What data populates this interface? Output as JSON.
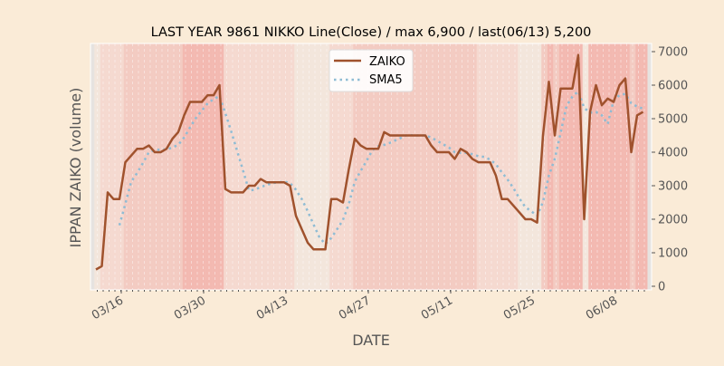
{
  "chart_data": {
    "type": "line",
    "title": "LAST YEAR 9861 NIKKO Line(Close) / max 6,900 / last(06/13) 5,200",
    "xlabel": "DATE",
    "ylabel": "IPPAN ZAIKO (volume)",
    "ylim": [
      -100,
      7250
    ],
    "yticks": [
      0,
      1000,
      2000,
      3000,
      4000,
      5000,
      6000,
      7000
    ],
    "ytick_labels": [
      "0",
      "1000",
      "2000",
      "3000",
      "4000",
      "5000",
      "6000",
      "7000"
    ],
    "ytick_side": "right",
    "start_date": "03/12",
    "xtick_labels": [
      "03/16",
      "03/30",
      "04/13",
      "04/27",
      "05/11",
      "05/25",
      "06/08"
    ],
    "xtick_day_index": [
      4,
      18,
      32,
      46,
      60,
      74,
      88
    ],
    "legend": {
      "placement": "upper-center",
      "entries": [
        "ZAIKO",
        "SMA5"
      ]
    },
    "sma_window": 5,
    "series": [
      {
        "name": "ZAIKO",
        "color": "#a0522d",
        "style": "solid",
        "values": [
          500,
          600,
          2800,
          2600,
          2600,
          3700,
          3900,
          4100,
          4100,
          4200,
          4000,
          4000,
          4100,
          4400,
          4600,
          5100,
          5500,
          5500,
          5500,
          5700,
          5700,
          6000,
          2900,
          2800,
          2800,
          2800,
          3000,
          3000,
          3200,
          3100,
          3100,
          3100,
          3100,
          3000,
          2100,
          1700,
          1300,
          1100,
          1100,
          1100,
          2600,
          2600,
          2500,
          3500,
          4400,
          4200,
          4100,
          4100,
          4100,
          4600,
          4500,
          4500,
          4500,
          4500,
          4500,
          4500,
          4500,
          4200,
          4000,
          4000,
          4000,
          3800,
          4100,
          4000,
          3800,
          3700,
          3700,
          3700,
          3300,
          2600,
          2600,
          2400,
          2200,
          2000,
          2000,
          1900,
          4500,
          6100,
          4500,
          5900,
          5900,
          5900,
          6900,
          2000,
          5200,
          6000,
          5400,
          5600,
          5500,
          6000,
          6200,
          4000,
          5100,
          5200
        ]
      },
      {
        "name": "SMA5",
        "color": "#8fbcd4",
        "style": "dotted",
        "derived_from": "ZAIKO"
      }
    ],
    "background_band_levels": [
      0,
      1,
      1,
      1,
      1,
      2,
      2,
      2,
      2,
      2,
      2,
      2,
      2,
      2,
      2,
      3,
      3,
      3,
      3,
      3,
      3,
      3,
      1,
      1,
      1,
      1,
      1,
      1,
      1,
      1,
      1,
      1,
      1,
      1,
      0,
      0,
      0,
      0,
      0,
      0,
      1,
      1,
      1,
      1,
      2,
      2,
      2,
      2,
      2,
      2,
      2,
      2,
      2,
      2,
      2,
      2,
      2,
      2,
      2,
      2,
      2,
      2,
      2,
      2,
      2,
      1,
      1,
      1,
      1,
      1,
      1,
      1,
      0,
      0,
      0,
      0,
      2,
      3,
      2,
      3,
      3,
      3,
      3,
      0,
      3,
      3,
      3,
      3,
      3,
      3,
      3,
      2,
      3,
      3
    ],
    "band_colors": [
      "#f3e6dc",
      "#f5d9d0",
      "#f3cbc2",
      "#f3b9b1"
    ],
    "grid": "vertical-dashed-daily"
  }
}
